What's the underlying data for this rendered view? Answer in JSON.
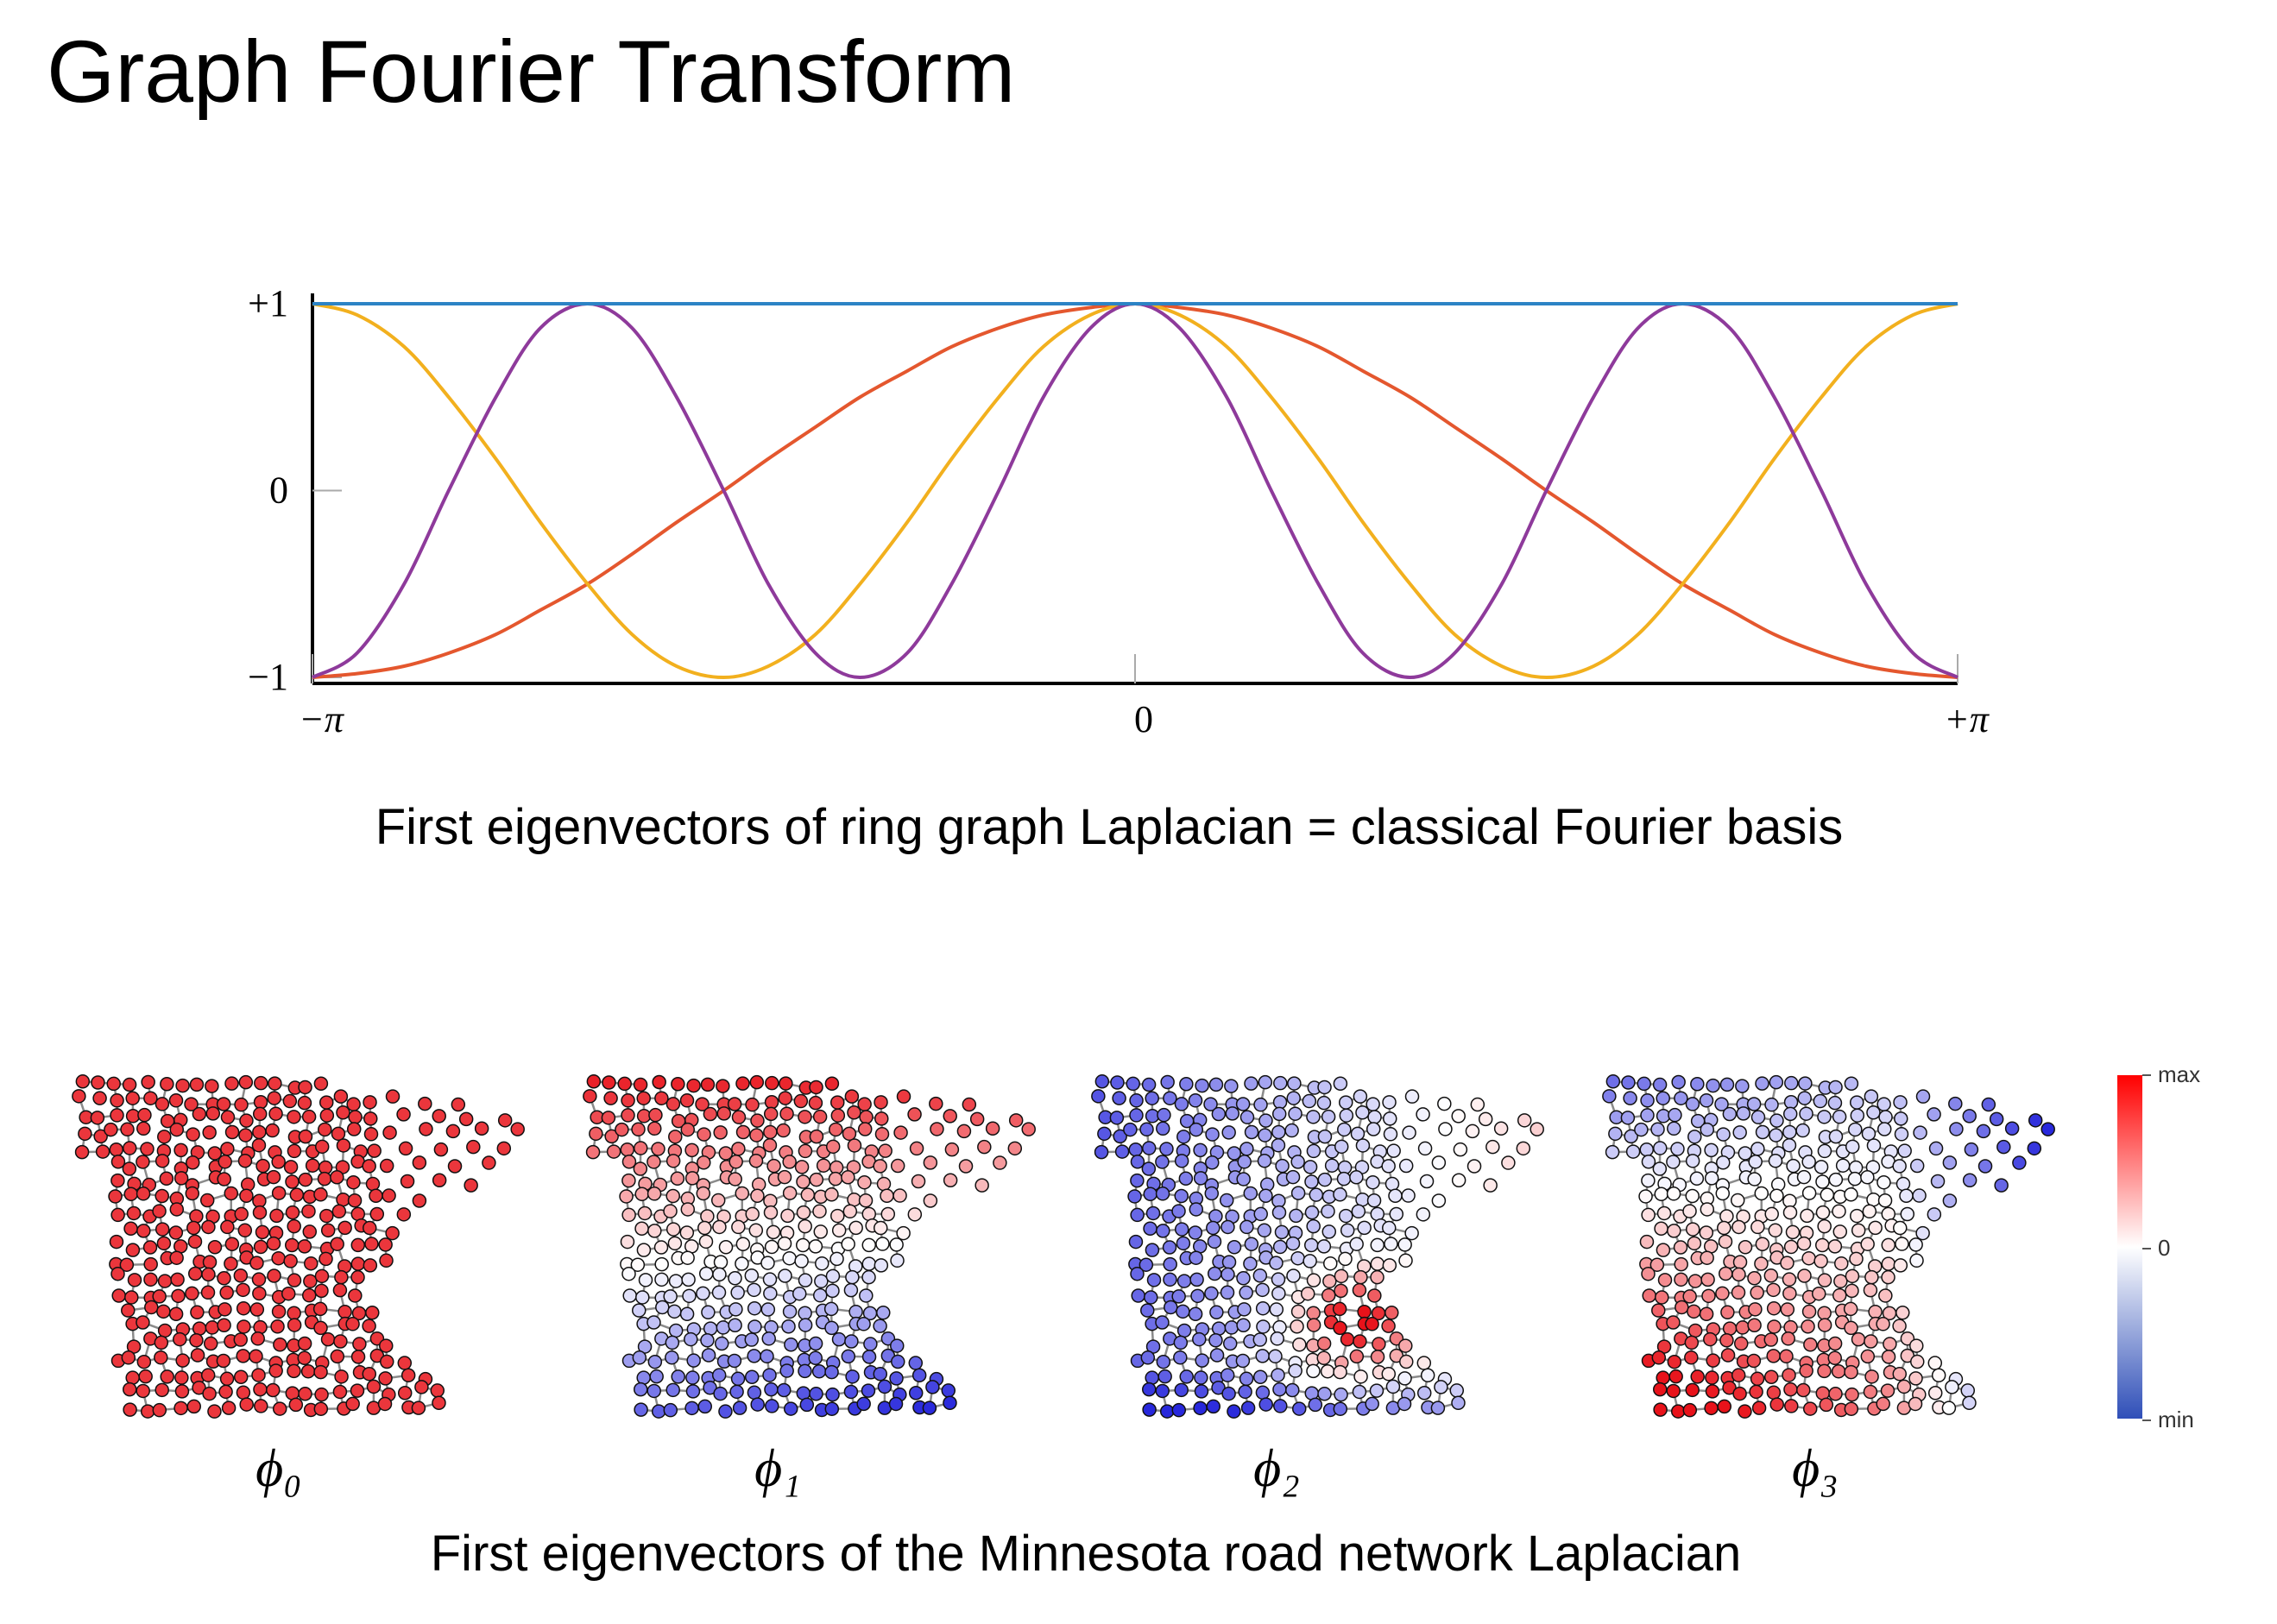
{
  "title": "Graph Fourier Transform",
  "chart_data": {
    "type": "line",
    "x": [
      -3.14,
      -2.97,
      -2.79,
      -2.62,
      -2.44,
      -2.27,
      -2.09,
      -1.92,
      -1.75,
      -1.57,
      -1.4,
      -1.22,
      -1.05,
      -0.87,
      -0.7,
      -0.52,
      -0.35,
      -0.17,
      0,
      0.17,
      0.35,
      0.52,
      0.7,
      0.87,
      1.05,
      1.22,
      1.4,
      1.57,
      1.75,
      1.92,
      2.09,
      2.27,
      2.44,
      2.62,
      2.79,
      2.97,
      3.14
    ],
    "series": [
      {
        "color": "#e4572e",
        "values": [
          -1,
          -0.98,
          -0.94,
          -0.87,
          -0.77,
          -0.64,
          -0.5,
          -0.34,
          -0.17,
          0,
          0.17,
          0.34,
          0.5,
          0.64,
          0.77,
          0.87,
          0.94,
          0.98,
          1,
          0.98,
          0.94,
          0.87,
          0.77,
          0.64,
          0.5,
          0.34,
          0.17,
          0,
          -0.17,
          -0.34,
          -0.5,
          -0.64,
          -0.77,
          -0.87,
          -0.94,
          -0.98,
          -1
        ]
      },
      {
        "color": "#f2b01e",
        "values": [
          1,
          0.94,
          0.77,
          0.5,
          0.17,
          -0.17,
          -0.5,
          -0.77,
          -0.94,
          -1,
          -0.94,
          -0.77,
          -0.5,
          -0.17,
          0.17,
          0.5,
          0.77,
          0.94,
          1,
          0.94,
          0.77,
          0.5,
          0.17,
          -0.17,
          -0.5,
          -0.77,
          -0.94,
          -1,
          -0.94,
          -0.77,
          -0.5,
          -0.17,
          0.17,
          0.5,
          0.77,
          0.94,
          1
        ]
      },
      {
        "color": "#8e3a9b",
        "values": [
          -1,
          -0.87,
          -0.5,
          0,
          0.5,
          0.87,
          1,
          0.87,
          0.5,
          0,
          -0.5,
          -0.87,
          -1,
          -0.87,
          -0.5,
          0,
          0.5,
          0.87,
          1,
          0.87,
          0.5,
          0,
          -0.5,
          -0.87,
          -1,
          -0.87,
          -0.5,
          0,
          0.5,
          0.87,
          1,
          0.87,
          0.5,
          0,
          -0.5,
          -0.87,
          -1
        ]
      },
      {
        "color": "#2c83c5",
        "values": [
          1,
          1,
          1,
          1,
          1,
          1,
          1,
          1,
          1,
          1,
          1,
          1,
          1,
          1,
          1,
          1,
          1,
          1,
          1,
          1,
          1,
          1,
          1,
          1,
          1,
          1,
          1,
          1,
          1,
          1,
          1,
          1,
          1,
          1,
          1,
          1,
          1
        ]
      }
    ],
    "xlim": [
      -3.14,
      3.14
    ],
    "ylim": [
      -1,
      1
    ],
    "xticks": [
      {
        "value": -3.14,
        "label": "−π"
      },
      0,
      {
        "value": 3.14,
        "label": "+π"
      }
    ],
    "yticks": [
      {
        "value": -1,
        "label": "−1"
      },
      0,
      {
        "value": 1,
        "label": "+1"
      }
    ]
  },
  "ring_caption": "First eigenvectors of ring graph Laplacian = classical Fourier basis",
  "panels": [
    "ϕ₀",
    "ϕ₁",
    "ϕ₂",
    "ϕ₃"
  ],
  "colorbar": [
    "max",
    "0",
    "min"
  ],
  "network_caption": "First eigenvectors of the Minnesota road network Laplacian"
}
